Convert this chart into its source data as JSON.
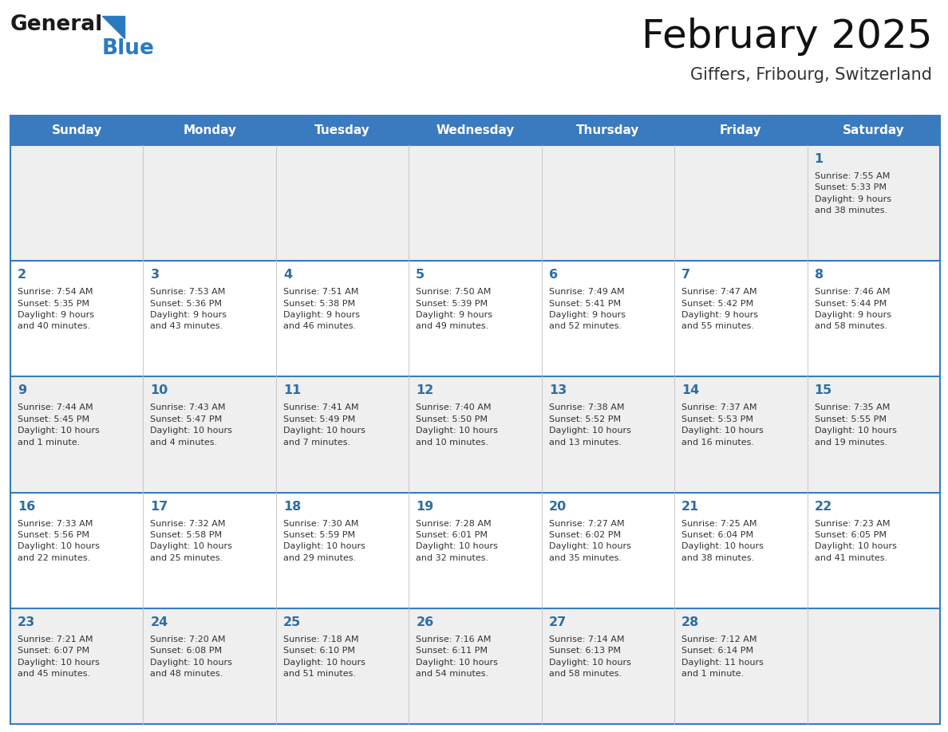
{
  "title": "February 2025",
  "subtitle": "Giffers, Fribourg, Switzerland",
  "header_bg": "#3a7abf",
  "header_text_color": "#ffffff",
  "day_names": [
    "Sunday",
    "Monday",
    "Tuesday",
    "Wednesday",
    "Thursday",
    "Friday",
    "Saturday"
  ],
  "alt_row_bg": "#efefef",
  "white_bg": "#ffffff",
  "border_color": "#3a7abf",
  "cell_sep_color": "#c0c0c0",
  "text_color": "#333333",
  "day_num_color": "#2d6da3",
  "days": [
    {
      "day": 1,
      "col": 6,
      "row": 0,
      "sunrise": "7:55 AM",
      "sunset": "5:33 PM",
      "daylight": "9 hours and 38 minutes"
    },
    {
      "day": 2,
      "col": 0,
      "row": 1,
      "sunrise": "7:54 AM",
      "sunset": "5:35 PM",
      "daylight": "9 hours and 40 minutes"
    },
    {
      "day": 3,
      "col": 1,
      "row": 1,
      "sunrise": "7:53 AM",
      "sunset": "5:36 PM",
      "daylight": "9 hours and 43 minutes"
    },
    {
      "day": 4,
      "col": 2,
      "row": 1,
      "sunrise": "7:51 AM",
      "sunset": "5:38 PM",
      "daylight": "9 hours and 46 minutes"
    },
    {
      "day": 5,
      "col": 3,
      "row": 1,
      "sunrise": "7:50 AM",
      "sunset": "5:39 PM",
      "daylight": "9 hours and 49 minutes"
    },
    {
      "day": 6,
      "col": 4,
      "row": 1,
      "sunrise": "7:49 AM",
      "sunset": "5:41 PM",
      "daylight": "9 hours and 52 minutes"
    },
    {
      "day": 7,
      "col": 5,
      "row": 1,
      "sunrise": "7:47 AM",
      "sunset": "5:42 PM",
      "daylight": "9 hours and 55 minutes"
    },
    {
      "day": 8,
      "col": 6,
      "row": 1,
      "sunrise": "7:46 AM",
      "sunset": "5:44 PM",
      "daylight": "9 hours and 58 minutes"
    },
    {
      "day": 9,
      "col": 0,
      "row": 2,
      "sunrise": "7:44 AM",
      "sunset": "5:45 PM",
      "daylight": "10 hours and 1 minute"
    },
    {
      "day": 10,
      "col": 1,
      "row": 2,
      "sunrise": "7:43 AM",
      "sunset": "5:47 PM",
      "daylight": "10 hours and 4 minutes"
    },
    {
      "day": 11,
      "col": 2,
      "row": 2,
      "sunrise": "7:41 AM",
      "sunset": "5:49 PM",
      "daylight": "10 hours and 7 minutes"
    },
    {
      "day": 12,
      "col": 3,
      "row": 2,
      "sunrise": "7:40 AM",
      "sunset": "5:50 PM",
      "daylight": "10 hours and 10 minutes"
    },
    {
      "day": 13,
      "col": 4,
      "row": 2,
      "sunrise": "7:38 AM",
      "sunset": "5:52 PM",
      "daylight": "10 hours and 13 minutes"
    },
    {
      "day": 14,
      "col": 5,
      "row": 2,
      "sunrise": "7:37 AM",
      "sunset": "5:53 PM",
      "daylight": "10 hours and 16 minutes"
    },
    {
      "day": 15,
      "col": 6,
      "row": 2,
      "sunrise": "7:35 AM",
      "sunset": "5:55 PM",
      "daylight": "10 hours and 19 minutes"
    },
    {
      "day": 16,
      "col": 0,
      "row": 3,
      "sunrise": "7:33 AM",
      "sunset": "5:56 PM",
      "daylight": "10 hours and 22 minutes"
    },
    {
      "day": 17,
      "col": 1,
      "row": 3,
      "sunrise": "7:32 AM",
      "sunset": "5:58 PM",
      "daylight": "10 hours and 25 minutes"
    },
    {
      "day": 18,
      "col": 2,
      "row": 3,
      "sunrise": "7:30 AM",
      "sunset": "5:59 PM",
      "daylight": "10 hours and 29 minutes"
    },
    {
      "day": 19,
      "col": 3,
      "row": 3,
      "sunrise": "7:28 AM",
      "sunset": "6:01 PM",
      "daylight": "10 hours and 32 minutes"
    },
    {
      "day": 20,
      "col": 4,
      "row": 3,
      "sunrise": "7:27 AM",
      "sunset": "6:02 PM",
      "daylight": "10 hours and 35 minutes"
    },
    {
      "day": 21,
      "col": 5,
      "row": 3,
      "sunrise": "7:25 AM",
      "sunset": "6:04 PM",
      "daylight": "10 hours and 38 minutes"
    },
    {
      "day": 22,
      "col": 6,
      "row": 3,
      "sunrise": "7:23 AM",
      "sunset": "6:05 PM",
      "daylight": "10 hours and 41 minutes"
    },
    {
      "day": 23,
      "col": 0,
      "row": 4,
      "sunrise": "7:21 AM",
      "sunset": "6:07 PM",
      "daylight": "10 hours and 45 minutes"
    },
    {
      "day": 24,
      "col": 1,
      "row": 4,
      "sunrise": "7:20 AM",
      "sunset": "6:08 PM",
      "daylight": "10 hours and 48 minutes"
    },
    {
      "day": 25,
      "col": 2,
      "row": 4,
      "sunrise": "7:18 AM",
      "sunset": "6:10 PM",
      "daylight": "10 hours and 51 minutes"
    },
    {
      "day": 26,
      "col": 3,
      "row": 4,
      "sunrise": "7:16 AM",
      "sunset": "6:11 PM",
      "daylight": "10 hours and 54 minutes"
    },
    {
      "day": 27,
      "col": 4,
      "row": 4,
      "sunrise": "7:14 AM",
      "sunset": "6:13 PM",
      "daylight": "10 hours and 58 minutes"
    },
    {
      "day": 28,
      "col": 5,
      "row": 4,
      "sunrise": "7:12 AM",
      "sunset": "6:14 PM",
      "daylight": "11 hours and 1 minute"
    }
  ],
  "num_rows": 5,
  "num_cols": 7,
  "logo_color_general": "#1a1a1a",
  "logo_color_blue": "#2a7abf"
}
